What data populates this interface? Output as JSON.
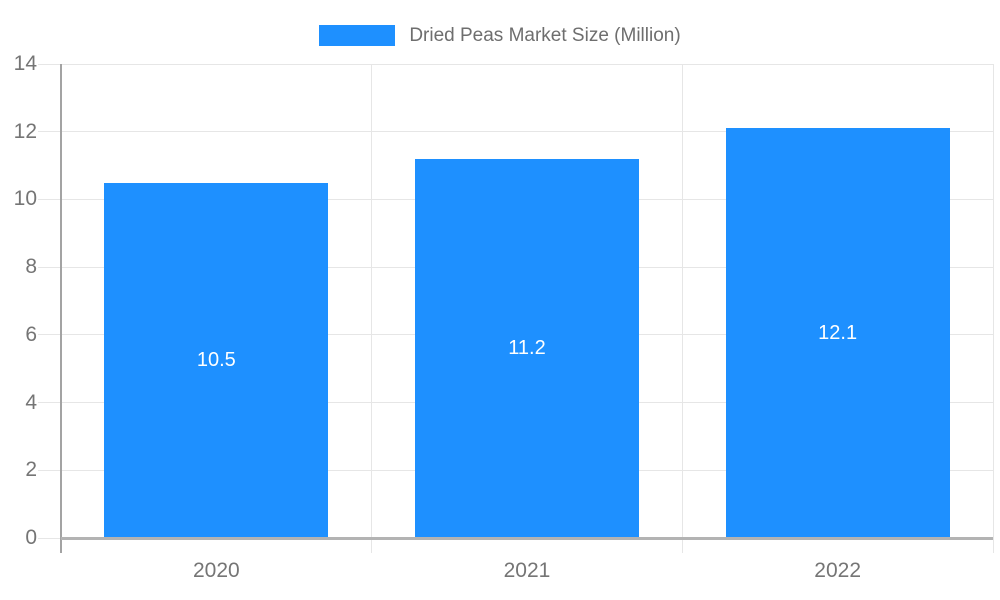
{
  "chart_data": {
    "type": "bar",
    "title": "Dried Peas Market Size (Million)",
    "legend": {
      "label": "Dried Peas Market Size (Million)",
      "position": "top"
    },
    "categories": [
      "2020",
      "2021",
      "2022"
    ],
    "series": [
      {
        "name": "Dried Peas Market Size (Million)",
        "values": [
          10.5,
          11.2,
          12.1
        ]
      }
    ],
    "value_labels": [
      "10.5",
      "11.2",
      "12.1"
    ],
    "xlabel": "",
    "ylabel": "",
    "ylim": [
      0,
      14
    ],
    "yticks": [
      0,
      2,
      4,
      6,
      8,
      10,
      12,
      14
    ],
    "grid": true,
    "colors": {
      "bar": "#1E90FF",
      "gridline": "#E6E6E6",
      "axis_vertical": "#A3A3A3",
      "axis_horizontal": "#B3B3B3",
      "tick_text": "#757575",
      "legend_text": "#6E6E6E",
      "value_label_text": "#FFFFFF",
      "background": "#FFFFFF"
    }
  }
}
